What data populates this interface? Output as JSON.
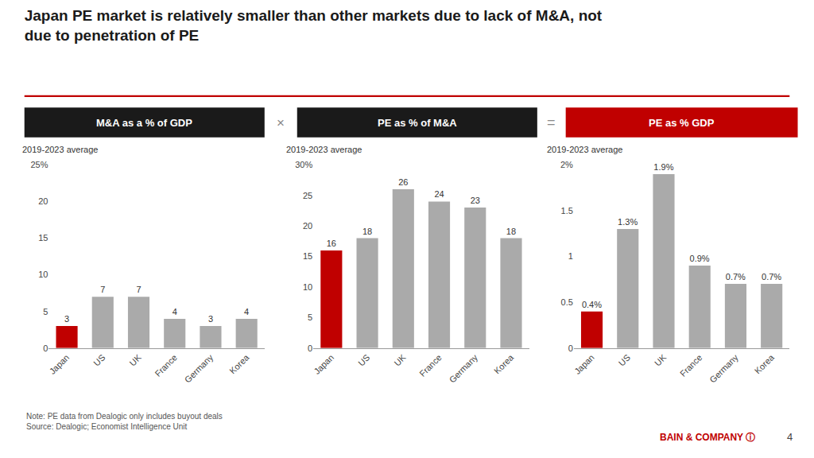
{
  "title": "Japan PE market is relatively smaller than other markets due to lack of M&A, not\ndue to penetration of PE",
  "annotations": [
    "×",
    "=",
    "Note: PE data from Dealogic only includes buyout deals\nSource: Dealogic; Economist Intelligence Unit",
    "BAIN & COMPANY ⓘ",
    "4"
  ],
  "chart_data": [
    {
      "type": "bar",
      "title": "M&A as a % of GDP",
      "subtitle": "2019-2023 average",
      "categories": [
        "Japan",
        "US",
        "UK",
        "France",
        "Germany",
        "Korea"
      ],
      "values": [
        3,
        7,
        7,
        4,
        3,
        4
      ],
      "colors": [
        "#C00000",
        "#AAAAAA",
        "#AAAAAA",
        "#AAAAAA",
        "#AAAAAA",
        "#AAAAAA"
      ],
      "ylim": [
        0,
        25
      ],
      "yticks": [
        0,
        5,
        10,
        15,
        20,
        {
          "value": 25,
          "label": "25%"
        }
      ],
      "data_labels": true,
      "grid": false
    },
    {
      "type": "bar",
      "title": "PE as % of M&A",
      "subtitle": "2019-2023 average",
      "categories": [
        "Japan",
        "US",
        "UK",
        "France",
        "Germany",
        "Korea"
      ],
      "values": [
        16,
        18,
        26,
        24,
        23,
        18
      ],
      "colors": [
        "#C00000",
        "#AAAAAA",
        "#AAAAAA",
        "#AAAAAA",
        "#AAAAAA",
        "#AAAAAA"
      ],
      "ylim": [
        0,
        30
      ],
      "yticks": [
        0,
        5,
        10,
        15,
        20,
        25,
        {
          "value": 30,
          "label": "30%"
        }
      ],
      "data_labels": true,
      "grid": false
    },
    {
      "type": "bar",
      "title": "PE as % GDP",
      "subtitle": "2019-2023 average",
      "categories": [
        "Japan",
        "US",
        "UK",
        "France",
        "Germany",
        "Korea"
      ],
      "values": [
        0.4,
        1.3,
        1.9,
        0.9,
        0.7,
        0.7
      ],
      "value_labels": [
        "0.4%",
        "1.3%",
        "1.9%",
        "0.9%",
        "0.7%",
        "0.7%"
      ],
      "colors": [
        "#C00000",
        "#AAAAAA",
        "#AAAAAA",
        "#AAAAAA",
        "#AAAAAA",
        "#AAAAAA"
      ],
      "ylim": [
        0,
        2
      ],
      "yticks": [
        0,
        0.5,
        1,
        1.5,
        {
          "value": 2,
          "label": "2%"
        }
      ],
      "data_labels": true,
      "grid": false
    }
  ]
}
